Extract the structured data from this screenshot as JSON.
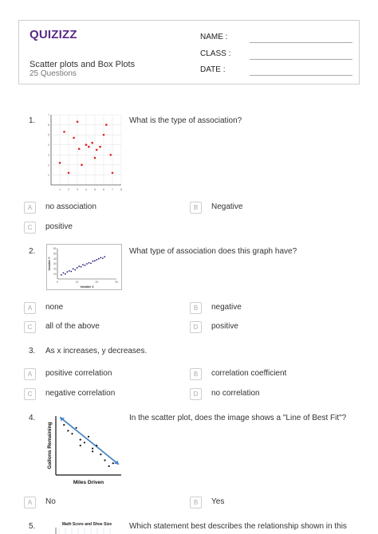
{
  "header": {
    "logo": "QUIZIZZ",
    "title": "Scatter plots and Box Plots",
    "count": "25 Questions",
    "name_label": "NAME :",
    "class_label": "CLASS :",
    "date_label": "DATE  :"
  },
  "questions": [
    {
      "num": "1.",
      "text": "What is the type of association?",
      "figure": {
        "y_ticks": [
          "7",
          "6",
          "5",
          "4",
          "3",
          "2",
          "1"
        ],
        "x_ticks": [
          "1",
          "2",
          "3",
          "4",
          "5",
          "6",
          "7",
          "8"
        ],
        "point_color": "#e02020"
      },
      "options": [
        {
          "letter": "A",
          "text": "no association"
        },
        {
          "letter": "B",
          "text": "Negative"
        },
        {
          "letter": "C",
          "text": "positive"
        }
      ]
    },
    {
      "num": "2.",
      "text": "What type of association does this graph have?",
      "figure": {
        "ylabel": "Variable Y",
        "xlabel": "Variable X",
        "y_ticks": [
          "60",
          "50",
          "40",
          "30",
          "20",
          "10"
        ],
        "x_ticks": [
          "0",
          "10",
          "20",
          "30"
        ],
        "point_color": "#1a1a7a"
      },
      "options": [
        {
          "letter": "A",
          "text": "none"
        },
        {
          "letter": "B",
          "text": "negative"
        },
        {
          "letter": "C",
          "text": "all of the above"
        },
        {
          "letter": "D",
          "text": "positive"
        }
      ]
    },
    {
      "num": "3.",
      "text": "As x increases, y decreases.",
      "options": [
        {
          "letter": "A",
          "text": "positive correlation"
        },
        {
          "letter": "B",
          "text": "correlation coefficient"
        },
        {
          "letter": "C",
          "text": "negative correlation"
        },
        {
          "letter": "D",
          "text": "no correlation"
        }
      ]
    },
    {
      "num": "4.",
      "text": "In the scatter plot, does the image shows a \"Line of Best Fit\"?",
      "figure": {
        "ylabel": "Gallons Remaining",
        "xlabel": "Miles Driven",
        "line_color": "#4a86c8"
      },
      "options": [
        {
          "letter": "A",
          "text": "No"
        },
        {
          "letter": "B",
          "text": "Yes"
        }
      ]
    },
    {
      "num": "5.",
      "text": "Which statement best describes the relationship shown in this",
      "figure": {
        "title": "Math Score and Shoe Size"
      }
    }
  ],
  "chart_data": [
    {
      "type": "scatter",
      "x": [
        1,
        1.5,
        2,
        2.6,
        3,
        3.2,
        3.5,
        4,
        4.3,
        4.7,
        5,
        5.2,
        5.6,
        6,
        6.3,
        6.8,
        7
      ],
      "y": [
        2.2,
        5.3,
        1.2,
        4.7,
        6.3,
        3.6,
        2.0,
        4.0,
        3.8,
        4.2,
        2.7,
        3.5,
        3.8,
        5.0,
        6.0,
        3.0,
        1.2
      ]
    },
    {
      "type": "scatter",
      "x": [
        2,
        3,
        4,
        5,
        6,
        7,
        8,
        9,
        10,
        11,
        12,
        13,
        14,
        15,
        16,
        17,
        18,
        19,
        20,
        21,
        22,
        23,
        24
      ],
      "y": [
        8,
        12,
        10,
        14,
        16,
        15,
        20,
        18,
        22,
        25,
        24,
        28,
        27,
        30,
        32,
        31,
        35,
        36,
        38,
        40,
        42,
        41,
        44
      ]
    },
    {
      "type": "scatter",
      "x": [
        1,
        1.5,
        2,
        2.5,
        3,
        3,
        3.5,
        4,
        4.5,
        4.5,
        5,
        5.5,
        6,
        6.5,
        7
      ],
      "y": [
        8.5,
        7.5,
        7,
        8,
        6,
        5,
        5.5,
        6.5,
        4.5,
        4,
        5,
        3.5,
        2.5,
        1.5,
        2
      ]
    }
  ]
}
